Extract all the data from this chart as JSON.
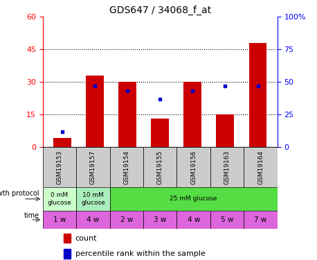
{
  "title": "GDS647 / 34068_f_at",
  "samples": [
    "GSM19153",
    "GSM19157",
    "GSM19154",
    "GSM19155",
    "GSM19156",
    "GSM19163",
    "GSM19164"
  ],
  "count_values": [
    4,
    33,
    30,
    13,
    30,
    15,
    48
  ],
  "percentile_values": [
    7,
    28,
    26,
    22,
    26,
    28,
    28
  ],
  "left_ylim": [
    0,
    60
  ],
  "right_ylim": [
    0,
    100
  ],
  "left_yticks": [
    0,
    15,
    30,
    45,
    60
  ],
  "right_yticks": [
    0,
    25,
    50,
    75,
    100
  ],
  "right_yticklabels": [
    "0",
    "25",
    "50",
    "75",
    "100%"
  ],
  "bar_color": "#cc0000",
  "percentile_color": "#0000cc",
  "background_color": "#ffffff",
  "growth_protocol_groups": [
    {
      "label": "0 mM\nglucose",
      "span": [
        0,
        1
      ],
      "color": "#ccffcc"
    },
    {
      "label": "10 mM\nglucose",
      "span": [
        1,
        2
      ],
      "color": "#99ee99"
    },
    {
      "label": "25 mM glucose",
      "span": [
        2,
        7
      ],
      "color": "#55dd44"
    }
  ],
  "time_labels": [
    "1 w",
    "4 w",
    "2 w",
    "3 w",
    "4 w",
    "5 w",
    "7 w"
  ],
  "time_color": "#dd66dd",
  "sample_bg_color": "#cccccc",
  "legend_count_color": "#cc0000",
  "legend_percentile_color": "#0000cc"
}
